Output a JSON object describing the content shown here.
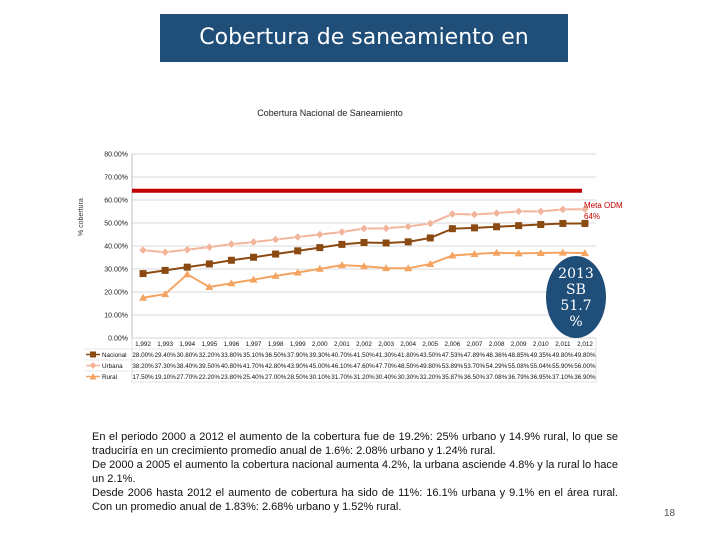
{
  "slide": {
    "title": "Cobertura de saneamiento en Bolivia",
    "page_number": "18",
    "badge_lines": [
      "2013",
      "SB",
      "51.7",
      "%"
    ],
    "meta_label": "Meta ODM 64%",
    "paragraphs": [
      "En el periodo 2000 a 2012 el aumento de la cobertura fue de 19.2%: 25% urbano y 14.9% rural, lo que se traduciría en un crecimiento promedio anual de 1.6%: 2.08% urbano y 1.24% rural.",
      "De 2000 a 2005 el aumento la cobertura nacional aumenta 4.2%, la urbana asciende 4.8% y la rural lo hace un 2.1%.",
      "Desde 2006 hasta 2012 el aumento de cobertura ha sido de 11%: 16.1% urbana y 9.1% en el área rural. Con un promedio anual de 1.83%: 2.68% urbano y 1.52% rural."
    ]
  },
  "chart_data": {
    "type": "line",
    "title": "Cobertura Nacional de Saneamiento",
    "ylabel": "% cobertura",
    "ylim": [
      0,
      80
    ],
    "yticks": [
      "0.00%",
      "10.00%",
      "20.00%",
      "30.00%",
      "40.00%",
      "50.00%",
      "60.00%",
      "70.00%",
      "80.00%"
    ],
    "categories": [
      "1,992",
      "1,993",
      "1,994",
      "1,995",
      "1,996",
      "1,997",
      "1,998",
      "1,999",
      "2,000",
      "2,001",
      "2,002",
      "2,003",
      "2,004",
      "2,005",
      "2,006",
      "2,007",
      "2,008",
      "2,009",
      "2,010",
      "2,011",
      "2,012"
    ],
    "target_value": 64,
    "series": [
      {
        "name": "Nacional",
        "color": "#8b4a12",
        "marker": "square",
        "values": [
          28.0,
          29.4,
          30.8,
          32.2,
          33.8,
          35.1,
          36.5,
          37.9,
          39.3,
          40.7,
          41.5,
          41.3,
          41.8,
          43.5,
          47.53,
          47.89,
          48.36,
          48.85,
          49.35,
          49.8,
          49.8
        ],
        "labels": [
          "28.00%",
          "29.40%",
          "30.80%",
          "32.20%",
          "33.80%",
          "35.10%",
          "36.50%",
          "37.90%",
          "39.30%",
          "40.70%",
          "41.50%",
          "41.30%",
          "41.80%",
          "43.50%",
          "47.53%",
          "47.89%",
          "48.36%",
          "48.85%",
          "49.35%",
          "49.80%",
          "49.80%"
        ]
      },
      {
        "name": "Urbana",
        "color": "#f2b49a",
        "marker": "diamond",
        "values": [
          38.2,
          37.3,
          38.4,
          39.5,
          40.8,
          41.7,
          42.8,
          43.9,
          45.0,
          46.1,
          47.6,
          47.7,
          48.5,
          49.8,
          53.89,
          53.7,
          54.29,
          55.08,
          55.04,
          55.9,
          56.0
        ],
        "labels": [
          "38.20%",
          "37.30%",
          "38.40%",
          "39.50%",
          "40.80%",
          "41.70%",
          "42.80%",
          "43.90%",
          "45.00%",
          "46.10%",
          "47.60%",
          "47.70%",
          "48.50%",
          "49.80%",
          "53.89%",
          "53.70%",
          "54.29%",
          "55.08%",
          "55.04%",
          "55.90%",
          "56.00%"
        ]
      },
      {
        "name": "Rural",
        "color": "#f4a460",
        "marker": "triangle",
        "values": [
          17.5,
          19.1,
          27.7,
          22.2,
          23.8,
          25.4,
          27.0,
          28.5,
          30.1,
          31.7,
          31.2,
          30.4,
          30.3,
          32.2,
          35.87,
          36.5,
          37.08,
          36.79,
          36.95,
          37.1,
          36.9
        ],
        "labels": [
          "17.50%",
          "19.10%",
          "27.70%",
          "22.20%",
          "23.80%",
          "25.40%",
          "27.00%",
          "28.50%",
          "30.10%",
          "31.70%",
          "31.20%",
          "30.40%",
          "30.30%",
          "32.20%",
          "35.87%",
          "36.50%",
          "37.08%",
          "36.79%",
          "36.95%",
          "37.10%",
          "36.90%"
        ]
      }
    ]
  }
}
